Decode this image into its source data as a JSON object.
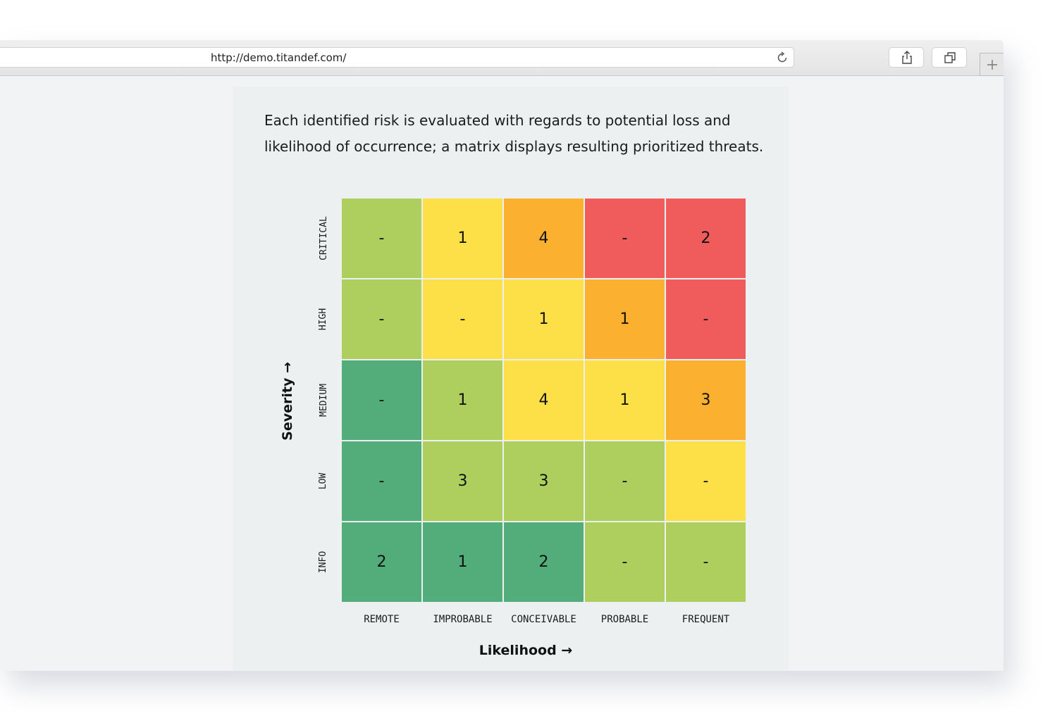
{
  "browser": {
    "url": "http://demo.titandef.com/"
  },
  "page": {
    "description": "Each identified risk is evaluated with regards to potential loss and likelihood of occurrence; a matrix displays resulting prioritized threats."
  },
  "colors": {
    "red": "#f05c5c",
    "orange": "#fbb12f",
    "yellow": "#fde047",
    "light_green": "#aecf5d",
    "dark_green": "#52ad7b"
  },
  "chart_data": {
    "type": "heatmap",
    "xlabel": "Likelihood →",
    "ylabel": "Severity →",
    "x_categories": [
      "REMOTE",
      "IMPROBABLE",
      "CONCEIVABLE",
      "PROBABLE",
      "FREQUENT"
    ],
    "y_categories": [
      "CRITICAL",
      "HIGH",
      "MEDIUM",
      "LOW",
      "INFO"
    ],
    "values": [
      [
        "-",
        "1",
        "4",
        "-",
        "2"
      ],
      [
        "-",
        "-",
        "1",
        "1",
        "-"
      ],
      [
        "-",
        "1",
        "4",
        "1",
        "3"
      ],
      [
        "-",
        "3",
        "3",
        "-",
        "-"
      ],
      [
        "2",
        "1",
        "2",
        "-",
        "-"
      ]
    ],
    "cell_colors": [
      [
        "light_green",
        "yellow",
        "orange",
        "red",
        "red"
      ],
      [
        "light_green",
        "yellow",
        "yellow",
        "orange",
        "red"
      ],
      [
        "dark_green",
        "light_green",
        "yellow",
        "yellow",
        "orange"
      ],
      [
        "dark_green",
        "light_green",
        "light_green",
        "light_green",
        "yellow"
      ],
      [
        "dark_green",
        "dark_green",
        "dark_green",
        "light_green",
        "light_green"
      ]
    ]
  }
}
